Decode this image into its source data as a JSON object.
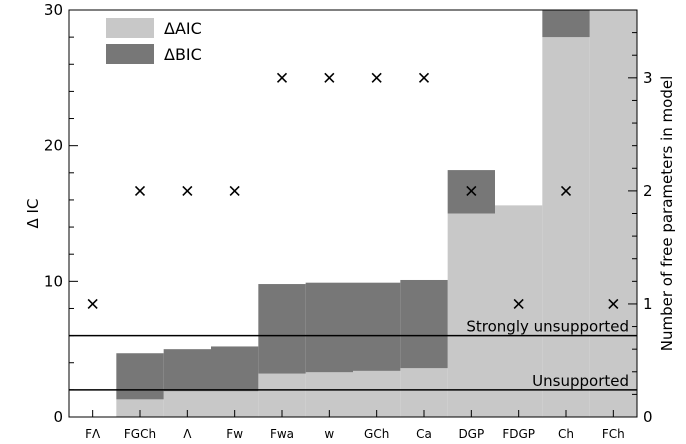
{
  "chart_data": {
    "type": "bar",
    "title": "",
    "categories": [
      "FΛ",
      "FGCh",
      "Λ",
      "Fw",
      "Fwa",
      "w",
      "GCh",
      "Ca",
      "DGP",
      "FDGP",
      "Ch",
      "FCh"
    ],
    "series": [
      {
        "name": "ΔAIC",
        "color": "#c8c8c8",
        "values": [
          0,
          1.3,
          1.9,
          1.9,
          3.2,
          3.3,
          3.4,
          3.6,
          15.0,
          15.6,
          28.0,
          30.0
        ]
      },
      {
        "name": "ΔBIC",
        "color": "#777777",
        "values": [
          0,
          4.7,
          5.0,
          5.2,
          9.8,
          9.9,
          9.9,
          10.1,
          18.2,
          15.6,
          30.0,
          30.0
        ]
      }
    ],
    "free_parameters": {
      "marker": "×",
      "values": [
        1,
        2,
        2,
        2,
        3,
        3,
        3,
        3,
        2,
        1,
        2,
        1
      ]
    },
    "reference_lines": [
      {
        "label": "Strongly unsupported",
        "value": 6
      },
      {
        "label": "Unsupported",
        "value": 2
      }
    ],
    "ylabel": "Δ IC",
    "ylim": [
      0,
      30
    ],
    "yticks": [
      0,
      10,
      20,
      30
    ],
    "y2label": "Number of free parameters in model",
    "y2lim": [
      0,
      3.6
    ],
    "y2ticks": [
      0,
      1,
      2,
      3
    ],
    "legend_position": "top-left",
    "grid": false
  }
}
